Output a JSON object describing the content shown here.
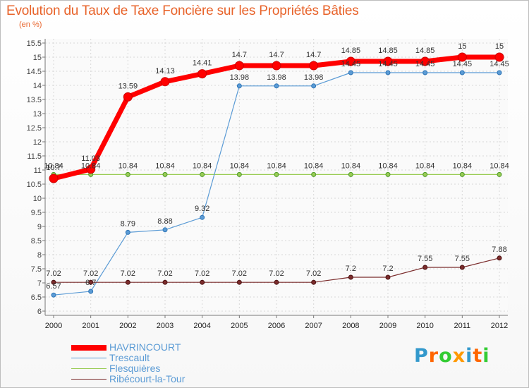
{
  "title": "Evolution du Taux de Taxe Foncière sur les Propriétés Bâties",
  "subtitle": "(en %)",
  "logo": {
    "letters": [
      "P",
      "r",
      "o",
      "x",
      "i",
      "t",
      "i"
    ],
    "colors": [
      "#3399cc",
      "#ff6600",
      "#33cc33",
      "#ff9900",
      "#3399cc",
      "#ff6600",
      "#33cc33"
    ]
  },
  "chart_data": {
    "type": "line",
    "title": "Evolution du Taux de Taxe Foncière sur les Propriétés Bâties",
    "ylabel": "(en %)",
    "xlabel": "",
    "x": [
      "2000",
      "2001",
      "2002",
      "2003",
      "2004",
      "2005",
      "2006",
      "2007",
      "2008",
      "2009",
      "2010",
      "2011",
      "2012"
    ],
    "ylim": [
      6,
      15.5
    ],
    "yticks": [
      "6",
      "6.5",
      "7",
      "7.5",
      "8",
      "8.5",
      "9",
      "9.5",
      "10",
      "10.5",
      "11",
      "11.5",
      "12",
      "12.5",
      "13",
      "13.5",
      "14",
      "14.5",
      "15",
      "15.5"
    ],
    "grid": true,
    "legend_position": "bottom-left",
    "series": [
      {
        "name": "HAVRINCOURT",
        "color": "#ff0000",
        "values": [
          10.7,
          11.03,
          13.59,
          14.13,
          14.41,
          14.7,
          14.7,
          14.7,
          14.85,
          14.85,
          14.85,
          15,
          15
        ],
        "labels": [
          "10.7",
          "11.03",
          "13.59",
          "14.13",
          "14.41",
          "14.7",
          "14.7",
          "14.7",
          "14.85",
          "14.85",
          "14.85",
          "15",
          "15"
        ]
      },
      {
        "name": "Trescault",
        "color": "#5b9bd5",
        "values": [
          6.57,
          6.7,
          8.79,
          8.88,
          9.32,
          13.98,
          13.98,
          13.98,
          14.45,
          14.45,
          14.45,
          14.45,
          14.45
        ],
        "labels": [
          "6.57",
          "6.7",
          "8.79",
          "8.88",
          "9.32",
          "13.98",
          "13.98",
          "13.98",
          "14.45",
          "14.45",
          "14.45",
          "14.45",
          "14.45"
        ]
      },
      {
        "name": "Flesquières",
        "color": "#99cc55",
        "values": [
          10.84,
          10.84,
          10.84,
          10.84,
          10.84,
          10.84,
          10.84,
          10.84,
          10.84,
          10.84,
          10.84,
          10.84,
          10.84
        ],
        "labels": [
          "10.84",
          "10.84",
          "10.84",
          "10.84",
          "10.84",
          "10.84",
          "10.84",
          "10.84",
          "10.84",
          "10.84",
          "10.84",
          "10.84",
          "10.84"
        ]
      },
      {
        "name": "Ribécourt-la-Tour",
        "color": "#7b2c2c",
        "values": [
          7.02,
          7.02,
          7.02,
          7.02,
          7.02,
          7.02,
          7.02,
          7.02,
          7.2,
          7.2,
          7.55,
          7.55,
          7.88
        ],
        "labels": [
          "7.02",
          "7.02",
          "7.02",
          "7.02",
          "7.02",
          "7.02",
          "7.02",
          "7.02",
          "7.2",
          "7.2",
          "7.55",
          "7.55",
          "7.88"
        ]
      }
    ]
  }
}
